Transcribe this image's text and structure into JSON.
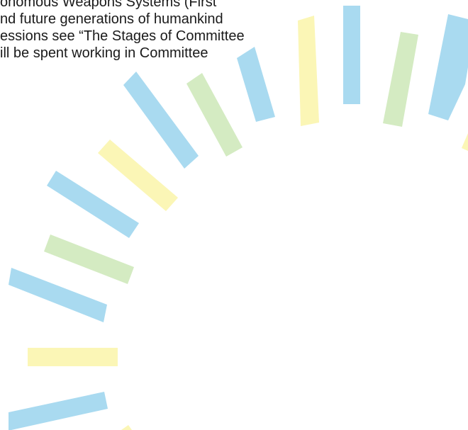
{
  "document": {
    "lines": [
      "onomous Weapons Systems (First",
      "nd future generations of humankind",
      "essions see “The Stages of Committee",
      "ill be spent working in Committee"
    ]
  },
  "decoration": {
    "name": "radiating-rays",
    "colors": {
      "blue": "#a9daf0",
      "green": "#d4ebc2",
      "yellow": "#fbf6b6"
    }
  }
}
